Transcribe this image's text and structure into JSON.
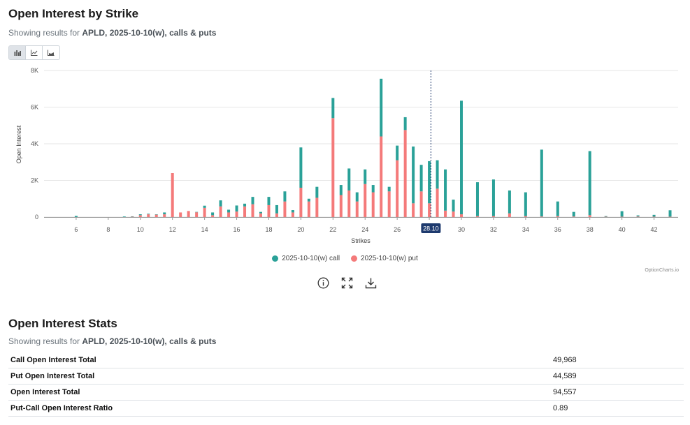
{
  "header": {
    "title": "Open Interest by Strike",
    "subtitle_prefix": "Showing results for ",
    "subtitle_bold": "APLD, 2025-10-10(w), calls & puts"
  },
  "toggle": {
    "items": [
      "bar-chart-icon",
      "line-chart-icon",
      "area-chart-icon"
    ],
    "active": 0
  },
  "legend": {
    "call_label": "2025-10-10(w) call",
    "put_label": "2025-10-10(w) put"
  },
  "credit": "OptionCharts.io",
  "tools": [
    "info-icon",
    "fullscreen-icon",
    "download-icon"
  ],
  "stats": {
    "title": "Open Interest Stats",
    "subtitle_prefix": "Showing results for ",
    "subtitle_bold": "APLD, 2025-10-10(w), calls & puts",
    "rows": [
      {
        "label": "Call Open Interest Total",
        "value": "49,968"
      },
      {
        "label": "Put Open Interest Total",
        "value": "44,589"
      },
      {
        "label": "Open Interest Total",
        "value": "94,557"
      },
      {
        "label": "Put-Call Open Interest Ratio",
        "value": "0.89"
      }
    ]
  },
  "colors": {
    "call": "#2aa198",
    "put": "#f47a7a",
    "spot": "#1e3a6e"
  },
  "chart_data": {
    "type": "bar",
    "stacked": true,
    "ylabel": "Open Interest",
    "xlabel": "Strikes",
    "ylim": [
      0,
      8000
    ],
    "yticks": [
      0,
      2000,
      4000,
      6000,
      8000
    ],
    "ytick_labels": [
      "0",
      "2K",
      "4K",
      "6K",
      "8K"
    ],
    "xlim": [
      4,
      43.5
    ],
    "xticks": [
      6,
      8,
      10,
      12,
      14,
      16,
      18,
      20,
      22,
      24,
      26,
      28,
      30,
      32,
      34,
      36,
      38,
      40,
      42
    ],
    "spot_price": 28.1,
    "spot_label": "28.10",
    "series": [
      {
        "name": "2025-10-10(w) call",
        "x": [
          5,
          6,
          7,
          8,
          9,
          9.5,
          10,
          10.5,
          11,
          11.5,
          12,
          12.5,
          13,
          13.5,
          14,
          14.5,
          15,
          15.5,
          16,
          16.5,
          17,
          17.5,
          18,
          18.5,
          19,
          19.5,
          20,
          20.5,
          21,
          22,
          22.5,
          23,
          23.5,
          24,
          24.5,
          25,
          25.5,
          26,
          26.5,
          27,
          27.5,
          28,
          28.5,
          29,
          29.5,
          30,
          31,
          32,
          33,
          34,
          35,
          36,
          37,
          38,
          39,
          40,
          41,
          42,
          43
        ],
        "values": [
          0,
          60,
          0,
          0,
          30,
          20,
          50,
          30,
          20,
          100,
          0,
          0,
          0,
          20,
          120,
          150,
          330,
          150,
          330,
          150,
          400,
          80,
          450,
          450,
          550,
          130,
          2200,
          150,
          600,
          1100,
          550,
          1200,
          500,
          800,
          400,
          3150,
          250,
          800,
          700,
          3100,
          1450,
          2300,
          1550,
          2250,
          650,
          6200,
          1850,
          2000,
          1250,
          1300,
          3650,
          800,
          250,
          3500,
          30,
          300,
          60,
          100,
          350
        ]
      },
      {
        "name": "2025-10-10(w) put",
        "x": [
          5,
          6,
          7,
          8,
          9,
          9.5,
          10,
          10.5,
          11,
          11.5,
          12,
          12.5,
          13,
          13.5,
          14,
          14.5,
          15,
          15.5,
          16,
          16.5,
          17,
          17.5,
          18,
          18.5,
          19,
          19.5,
          20,
          20.5,
          21,
          22,
          22.5,
          23,
          23.5,
          24,
          24.5,
          25,
          25.5,
          26,
          26.5,
          27,
          27.5,
          28,
          28.5,
          29,
          29.5,
          30,
          31,
          32,
          33,
          34,
          35,
          36,
          37,
          38,
          39,
          40,
          41,
          42,
          43
        ],
        "values": [
          0,
          0,
          0,
          0,
          0,
          20,
          100,
          150,
          130,
          150,
          2400,
          250,
          330,
          260,
          500,
          100,
          580,
          250,
          300,
          580,
          700,
          200,
          650,
          200,
          850,
          250,
          1600,
          850,
          1050,
          5400,
          1200,
          1450,
          850,
          1800,
          1350,
          4400,
          1400,
          3100,
          4750,
          750,
          1400,
          750,
          1550,
          350,
          300,
          150,
          50,
          50,
          200,
          50,
          30,
          50,
          30,
          100,
          20,
          20,
          30,
          20,
          20
        ]
      }
    ]
  }
}
